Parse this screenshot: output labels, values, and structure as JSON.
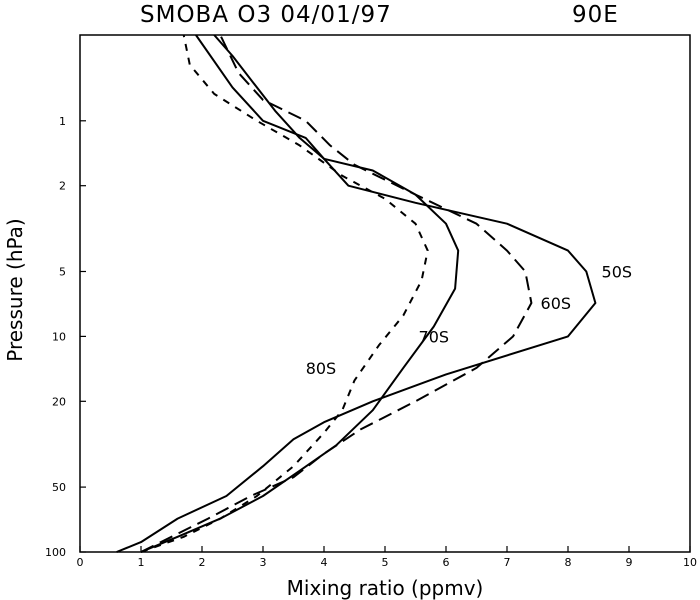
{
  "chart_data": {
    "type": "line",
    "title": "SMOBA O3 04/01/97",
    "title_right": "90E",
    "xlabel": "Mixing ratio (ppmv)",
    "ylabel": "Pressure (hPa)",
    "xlim": [
      0,
      10
    ],
    "ylim": [
      100,
      0.4
    ],
    "y_scale": "log",
    "grid": false,
    "legend": "inline labels",
    "x_ticks": [
      "0",
      "1",
      "2",
      "3",
      "4",
      "5",
      "6",
      "7",
      "8",
      "9",
      "10"
    ],
    "y_ticks": [
      "1",
      "2",
      "5",
      "10",
      "20",
      "50",
      "100"
    ],
    "series": [
      {
        "name": "50S",
        "dash": "solid",
        "x": [
          0.6,
          1.0,
          1.6,
          2.4,
          3.0,
          3.5,
          4.0,
          4.8,
          6.0,
          8.0,
          8.45,
          8.3,
          8.0,
          7.0,
          5.5,
          4.4,
          4.0,
          3.6,
          3.2,
          2.9,
          2.5,
          2.2
        ],
        "y": [
          100,
          90,
          70,
          55,
          40,
          30,
          25,
          20,
          15,
          10,
          7,
          5,
          4,
          3,
          2.4,
          2,
          1.5,
          1.2,
          0.9,
          0.7,
          0.5,
          0.4
        ]
      },
      {
        "name": "60S",
        "dash": "long",
        "x": [
          1.0,
          1.5,
          2.1,
          2.8,
          3.5,
          4.0,
          4.6,
          5.5,
          6.5,
          7.1,
          7.4,
          7.3,
          7.0,
          6.5,
          5.5,
          4.5,
          4.1,
          3.7,
          3.0,
          2.6,
          2.3
        ],
        "y": [
          100,
          85,
          70,
          55,
          45,
          35,
          27,
          20,
          14,
          10,
          7,
          5,
          4,
          3,
          2.2,
          1.6,
          1.3,
          1.0,
          0.8,
          0.6,
          0.4
        ]
      },
      {
        "name": "70S",
        "dash": "solid",
        "x": [
          1.0,
          1.6,
          2.3,
          3.0,
          3.6,
          4.2,
          4.8,
          5.3,
          5.8,
          6.15,
          6.2,
          6.0,
          5.5,
          4.8,
          4.0,
          3.7,
          3.0,
          2.5,
          1.9
        ],
        "y": [
          100,
          85,
          70,
          55,
          42,
          32,
          22,
          14,
          9,
          6,
          4,
          3,
          2.2,
          1.7,
          1.5,
          1.2,
          1.0,
          0.7,
          0.4
        ]
      },
      {
        "name": "80S",
        "dash": "short",
        "x": [
          1.0,
          1.7,
          2.3,
          2.9,
          3.5,
          4.0,
          4.3,
          4.5,
          4.9,
          5.3,
          5.6,
          5.7,
          5.5,
          5.0,
          4.3,
          3.6,
          2.9,
          2.2,
          1.8,
          1.7
        ],
        "y": [
          100,
          85,
          70,
          55,
          40,
          28,
          22,
          16,
          11,
          8,
          5.5,
          4,
          3,
          2.3,
          1.8,
          1.3,
          1.0,
          0.75,
          0.55,
          0.4
        ]
      }
    ],
    "series_labels": [
      "50S",
      "60S",
      "70S",
      "80S"
    ]
  }
}
